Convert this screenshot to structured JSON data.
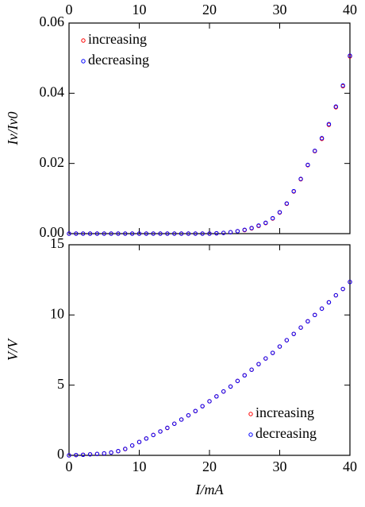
{
  "chart_data": [
    {
      "type": "scatter",
      "ylabel": "Iv/Iv0",
      "x": [
        0,
        1,
        2,
        3,
        4,
        5,
        6,
        7,
        8,
        9,
        10,
        11,
        12,
        13,
        14,
        15,
        16,
        17,
        18,
        19,
        20,
        21,
        22,
        23,
        24,
        25,
        26,
        27,
        28,
        29,
        30,
        31,
        32,
        33,
        34,
        35,
        36,
        37,
        38,
        39,
        40
      ],
      "series": [
        {
          "name": "increasing",
          "color": "#ff0000",
          "values": [
            0,
            0,
            0,
            0,
            0,
            0,
            0,
            0,
            0,
            0,
            0,
            0,
            0,
            0,
            0,
            0,
            0,
            0,
            0,
            0,
            0,
            0.0001,
            0.0002,
            0.0004,
            0.0007,
            0.001,
            0.0015,
            0.0022,
            0.003,
            0.0043,
            0.006,
            0.0085,
            0.012,
            0.0155,
            0.0195,
            0.0235,
            0.027,
            0.031,
            0.036,
            0.042,
            0.0505
          ]
        },
        {
          "name": "decreasing",
          "color": "#0000ff",
          "values": [
            0,
            0,
            0,
            0,
            0,
            0,
            0,
            0,
            0,
            0,
            0,
            0,
            0,
            0,
            0,
            0,
            0,
            0,
            0,
            0,
            0,
            0.0001,
            0.0002,
            0.0004,
            0.0007,
            0.0011,
            0.0016,
            0.0023,
            0.0031,
            0.0044,
            0.0061,
            0.0086,
            0.0121,
            0.0156,
            0.0196,
            0.0236,
            0.0272,
            0.0312,
            0.0362,
            0.0422,
            0.0507
          ]
        }
      ],
      "xlim": [
        0,
        40
      ],
      "xticks": [
        0,
        10,
        20,
        30,
        40
      ],
      "xaxis_position": "top",
      "ylim": [
        0,
        0.06
      ],
      "yticks": [
        {
          "value": 0,
          "label": "0.00"
        },
        {
          "value": 0.02,
          "label": "0.02"
        },
        {
          "value": 0.04,
          "label": "0.04"
        },
        {
          "value": 0.06,
          "label": "0.06"
        }
      ],
      "legend": "upper left"
    },
    {
      "type": "scatter",
      "ylabel": "V/V",
      "xlabel": "I/mA",
      "x": [
        0,
        1,
        2,
        3,
        4,
        5,
        6,
        7,
        8,
        9,
        10,
        11,
        12,
        13,
        14,
        15,
        16,
        17,
        18,
        19,
        20,
        21,
        22,
        23,
        24,
        25,
        26,
        27,
        28,
        29,
        30,
        31,
        32,
        33,
        34,
        35,
        36,
        37,
        38,
        39,
        40
      ],
      "series": [
        {
          "name": "increasing",
          "color": "#ff0000",
          "values": [
            0,
            0.02,
            0.04,
            0.07,
            0.1,
            0.14,
            0.2,
            0.3,
            0.45,
            0.7,
            0.95,
            1.2,
            1.45,
            1.7,
            1.95,
            2.25,
            2.55,
            2.85,
            3.15,
            3.5,
            3.85,
            4.2,
            4.55,
            4.9,
            5.3,
            5.7,
            6.1,
            6.5,
            6.9,
            7.3,
            7.75,
            8.2,
            8.65,
            9.1,
            9.55,
            10.0,
            10.45,
            10.9,
            11.4,
            11.85,
            12.35
          ]
        },
        {
          "name": "decreasing",
          "color": "#0000ff",
          "values": [
            0,
            0.02,
            0.04,
            0.07,
            0.1,
            0.14,
            0.2,
            0.3,
            0.46,
            0.7,
            0.95,
            1.2,
            1.45,
            1.7,
            1.96,
            2.25,
            2.55,
            2.85,
            3.16,
            3.5,
            3.85,
            4.2,
            4.55,
            4.9,
            5.3,
            5.7,
            6.1,
            6.5,
            6.9,
            7.3,
            7.75,
            8.2,
            8.65,
            9.1,
            9.55,
            10.0,
            10.45,
            10.9,
            11.4,
            11.85,
            12.35
          ]
        }
      ],
      "xlim": [
        0,
        40
      ],
      "xticks": [
        0,
        10,
        20,
        30,
        40
      ],
      "xaxis_position": "bottom",
      "ylim": [
        0,
        15
      ],
      "yticks": [
        0,
        5,
        10,
        15
      ],
      "legend": "lower right"
    }
  ]
}
